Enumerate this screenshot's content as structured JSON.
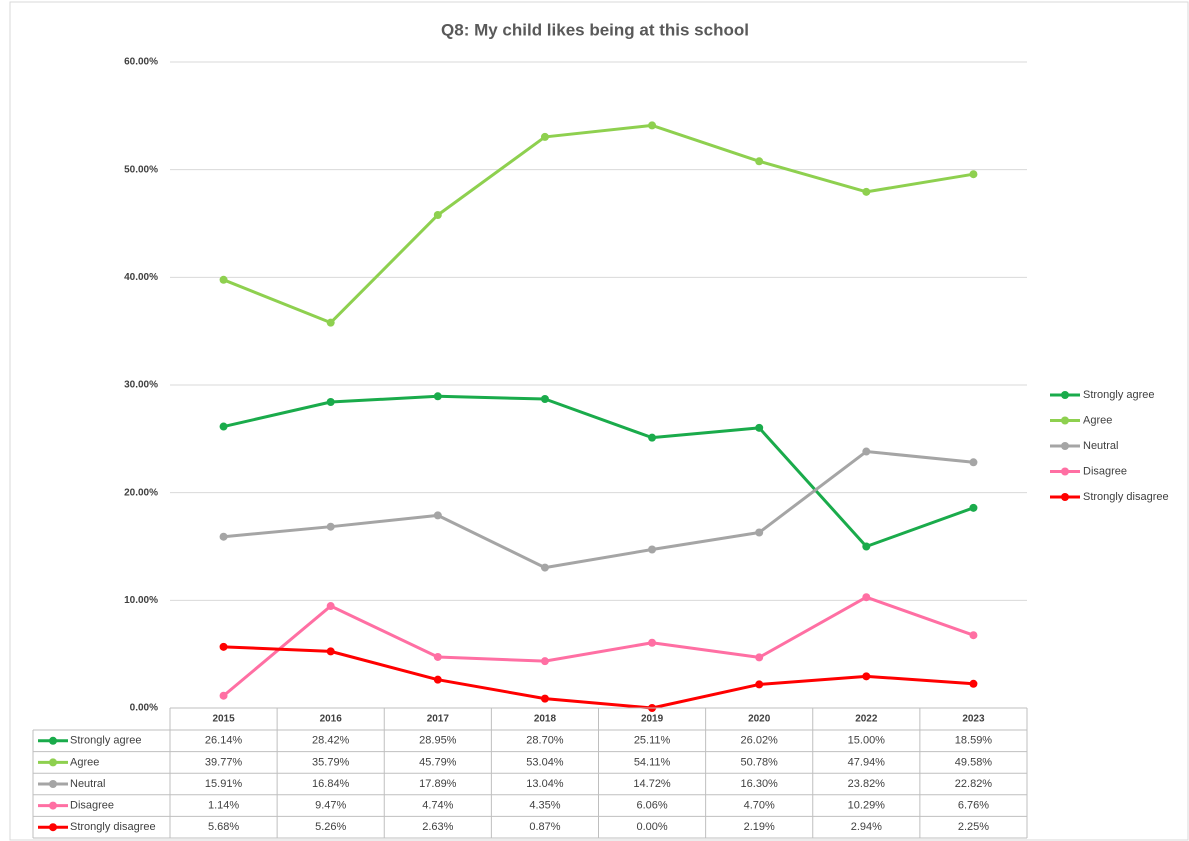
{
  "chart_data": {
    "type": "line",
    "title": "Q8: My child likes being at this school",
    "categories": [
      "2015",
      "2016",
      "2017",
      "2018",
      "2019",
      "2020",
      "2022",
      "2023"
    ],
    "ylim": [
      0,
      60
    ],
    "yticks": [
      {
        "value": 0,
        "label": "0.00%"
      },
      {
        "value": 10,
        "label": "10.00%"
      },
      {
        "value": 20,
        "label": "20.00%"
      },
      {
        "value": 30,
        "label": "30.00%"
      },
      {
        "value": 40,
        "label": "40.00%"
      },
      {
        "value": 50,
        "label": "50.00%"
      },
      {
        "value": 60,
        "label": "60.00%"
      }
    ],
    "grid": true,
    "legend": "right",
    "data_table": true,
    "series": [
      {
        "name": "Strongly agree",
        "color": "#1aab4b",
        "values": [
          26.14,
          28.42,
          28.95,
          28.7,
          25.11,
          26.02,
          15.0,
          18.59
        ],
        "value_labels": [
          "26.14%",
          "28.42%",
          "28.95%",
          "28.70%",
          "25.11%",
          "26.02%",
          "15.00%",
          "18.59%"
        ]
      },
      {
        "name": "Agree",
        "color": "#8ed04f",
        "values": [
          39.77,
          35.79,
          45.79,
          53.04,
          54.11,
          50.78,
          47.94,
          49.58
        ],
        "value_labels": [
          "39.77%",
          "35.79%",
          "45.79%",
          "53.04%",
          "54.11%",
          "50.78%",
          "47.94%",
          "49.58%"
        ]
      },
      {
        "name": "Neutral",
        "color": "#a5a5a5",
        "values": [
          15.91,
          16.84,
          17.89,
          13.04,
          14.72,
          16.3,
          23.82,
          22.82
        ],
        "value_labels": [
          "15.91%",
          "16.84%",
          "17.89%",
          "13.04%",
          "14.72%",
          "16.30%",
          "23.82%",
          "22.82%"
        ]
      },
      {
        "name": "Disagree",
        "color": "#ff6fa3",
        "values": [
          1.14,
          9.47,
          4.74,
          4.35,
          6.06,
          4.7,
          10.29,
          6.76
        ],
        "value_labels": [
          "1.14%",
          "9.47%",
          "4.74%",
          "4.35%",
          "6.06%",
          "4.70%",
          "10.29%",
          "6.76%"
        ]
      },
      {
        "name": "Strongly disagree",
        "color": "#ff0000",
        "values": [
          5.68,
          5.26,
          2.63,
          0.87,
          0.0,
          2.19,
          2.94,
          2.25
        ],
        "value_labels": [
          "5.68%",
          "5.26%",
          "2.63%",
          "0.87%",
          "0.00%",
          "2.19%",
          "2.94%",
          "2.25%"
        ]
      }
    ]
  }
}
